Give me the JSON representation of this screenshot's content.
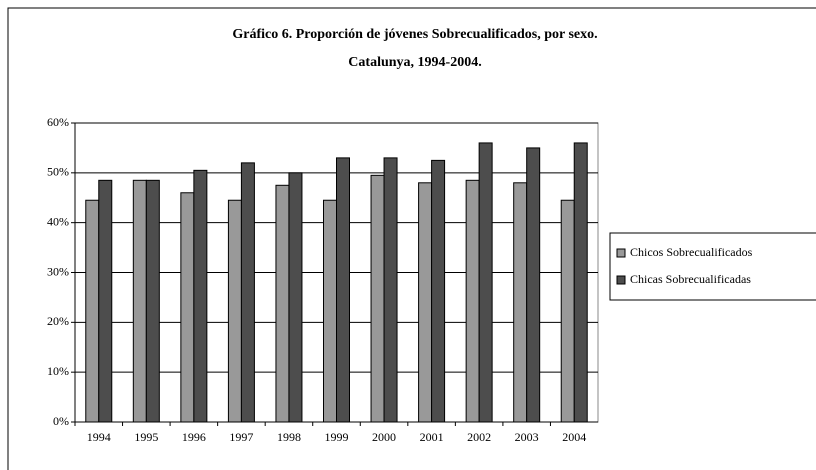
{
  "chart_data": {
    "type": "bar",
    "title": "Gráfico 6. Proporción de jóvenes Sobrecualificados, por sexo.",
    "subtitle": "Catalunya, 1994-2004.",
    "categories": [
      "1994",
      "1995",
      "1996",
      "1997",
      "1998",
      "1999",
      "2000",
      "2001",
      "2002",
      "2003",
      "2004"
    ],
    "series": [
      {
        "name": "Chicos Sobrecualificados",
        "color": "#999999",
        "values": [
          44.5,
          48.5,
          46,
          44.5,
          47.5,
          44.5,
          49.5,
          48,
          48.5,
          48,
          44.5
        ]
      },
      {
        "name": "Chicas Sobrecualificadas",
        "color": "#4d4d4d",
        "values": [
          48.5,
          48.5,
          50.5,
          52,
          50,
          53,
          53,
          52.5,
          56,
          55,
          56
        ]
      }
    ],
    "ylim": [
      0,
      60
    ],
    "yticks": [
      {
        "value": 0,
        "label": "0%"
      },
      {
        "value": 10,
        "label": "10%"
      },
      {
        "value": 20,
        "label": "20%"
      },
      {
        "value": 30,
        "label": "30%"
      },
      {
        "value": 40,
        "label": "40%"
      },
      {
        "value": 50,
        "label": "50%"
      },
      {
        "value": 60,
        "label": "60%"
      }
    ],
    "grid": true,
    "legend": "right"
  }
}
